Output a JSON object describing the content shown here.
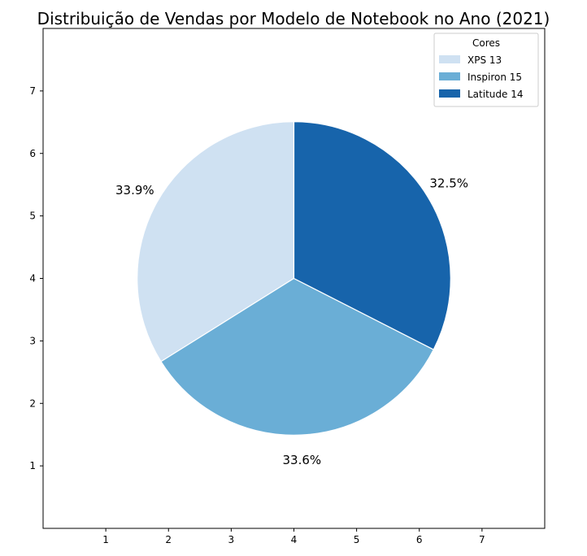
{
  "chart_data": {
    "type": "pie",
    "title": "Distribuição de Vendas por Modelo de Notebook no Ano (2021)",
    "xlabel": "",
    "ylabel": "",
    "categories": [
      "XPS 13",
      "Inspiron 15",
      "Latitude 14"
    ],
    "values": [
      33.9,
      33.6,
      32.5
    ],
    "value_labels": [
      "33.9%",
      "33.6%",
      "32.5%"
    ],
    "colors": [
      "#cfe1f2",
      "#6aaed6",
      "#1764ab"
    ],
    "legend": {
      "title": "Cores",
      "placement": "top-right",
      "entries": [
        "XPS 13",
        "Inspiron 15",
        "Latitude 14"
      ]
    },
    "axes": {
      "xlim": [
        0,
        8
      ],
      "ylim": [
        0,
        8
      ],
      "x_ticks": [
        "1",
        "2",
        "3",
        "4",
        "5",
        "6",
        "7"
      ],
      "y_ticks": [
        "1",
        "2",
        "3",
        "4",
        "5",
        "6",
        "7"
      ]
    },
    "center": [
      4,
      4
    ],
    "radius": 2.5,
    "start_angle_deg": 90,
    "grid": false
  }
}
